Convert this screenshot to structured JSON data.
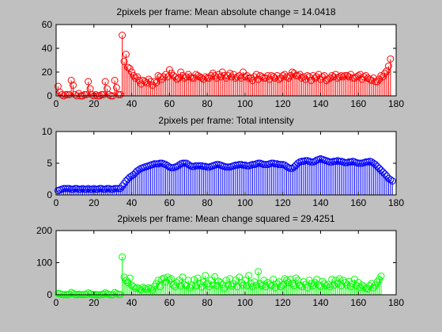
{
  "figure": {
    "background": "#c0c0c0",
    "axes_background": "#ffffff"
  },
  "chart_data": [
    {
      "type": "stem",
      "title": "2pixels per frame: Mean absolute change = 14.0418",
      "color": "#ff0000",
      "marker": "circle",
      "xlim": [
        0,
        180
      ],
      "ylim": [
        0,
        60
      ],
      "xticks": [
        0,
        20,
        40,
        60,
        80,
        100,
        120,
        140,
        160,
        180
      ],
      "yticks": [
        0,
        20,
        40,
        60
      ],
      "x_start": 1,
      "values": [
        8,
        3,
        1,
        0,
        1,
        1,
        1,
        13,
        9,
        1,
        0,
        2,
        0,
        0,
        1,
        1,
        12,
        6,
        1,
        0,
        1,
        0,
        0,
        1,
        1,
        12,
        6,
        1,
        0,
        0,
        13,
        7,
        1,
        1,
        51,
        29,
        35,
        24,
        23,
        20,
        17,
        15,
        16,
        13,
        10,
        13,
        12,
        11,
        14,
        12,
        9,
        12,
        11,
        17,
        16,
        14,
        16,
        18,
        16,
        22,
        19,
        17,
        16,
        14,
        15,
        20,
        17,
        15,
        16,
        18,
        16,
        15,
        15,
        18,
        17,
        16,
        15,
        14,
        16,
        15,
        15,
        17,
        19,
        17,
        15,
        18,
        16,
        20,
        17,
        15,
        17,
        19,
        16,
        18,
        15,
        16,
        17,
        15,
        20,
        16,
        17,
        15,
        15,
        13,
        16,
        18,
        14,
        17,
        16,
        15,
        15,
        17,
        14,
        17,
        16,
        15,
        17,
        14,
        15,
        17,
        18,
        16,
        15,
        17,
        20,
        19,
        17,
        17,
        18,
        15,
        16,
        14,
        17,
        16,
        13,
        17,
        15,
        16,
        18,
        14,
        16,
        17,
        13,
        14,
        15,
        17,
        16,
        18,
        15,
        16,
        17,
        16,
        17,
        17,
        16,
        18,
        15,
        15,
        16,
        17,
        18,
        14,
        16,
        17,
        15,
        14,
        13,
        15,
        12,
        12,
        14,
        17,
        16,
        19,
        21,
        25,
        31
      ]
    },
    {
      "type": "stem",
      "title": "2pixels per frame: Total intensity",
      "color": "#0000ff",
      "marker": "circle",
      "xlim": [
        0,
        180
      ],
      "ylim": [
        0,
        10
      ],
      "xticks": [
        0,
        20,
        40,
        60,
        80,
        100,
        120,
        140,
        160,
        180
      ],
      "yticks": [
        0,
        5,
        10
      ],
      "x_start": 1,
      "values": [
        0.7,
        0.8,
        0.9,
        1.0,
        1.0,
        1.0,
        1.0,
        0.9,
        0.9,
        1.0,
        1.0,
        0.9,
        0.9,
        1.0,
        0.9,
        0.9,
        1.0,
        0.9,
        0.9,
        1.0,
        0.9,
        0.9,
        1.0,
        1.0,
        0.9,
        0.9,
        1.0,
        1.0,
        0.9,
        0.9,
        1.0,
        1.0,
        1.0,
        1.0,
        1.4,
        1.8,
        2.2,
        2.5,
        2.8,
        3.0,
        3.2,
        3.5,
        3.8,
        4.0,
        4.2,
        4.3,
        4.4,
        4.5,
        4.6,
        4.7,
        4.8,
        4.9,
        4.9,
        4.9,
        5.0,
        5.0,
        4.9,
        4.8,
        4.6,
        4.4,
        4.3,
        4.3,
        4.4,
        4.5,
        4.7,
        4.9,
        5.0,
        5.0,
        5.0,
        4.8,
        4.6,
        4.5,
        4.5,
        4.6,
        4.6,
        4.6,
        4.6,
        4.5,
        4.5,
        4.4,
        4.4,
        4.5,
        4.6,
        4.7,
        4.8,
        4.8,
        4.7,
        4.6,
        4.5,
        4.4,
        4.4,
        4.4,
        4.5,
        4.6,
        4.7,
        4.7,
        4.8,
        4.8,
        4.7,
        4.7,
        4.6,
        4.6,
        4.7,
        4.8,
        4.8,
        4.9,
        5.0,
        5.0,
        4.9,
        4.8,
        4.8,
        4.8,
        4.9,
        5.0,
        5.0,
        4.9,
        4.9,
        4.8,
        4.8,
        4.8,
        4.7,
        4.5,
        4.3,
        4.2,
        4.2,
        4.4,
        4.7,
        5.0,
        5.2,
        5.3,
        5.3,
        5.4,
        5.4,
        5.3,
        5.2,
        5.2,
        5.3,
        5.5,
        5.6,
        5.7,
        5.6,
        5.5,
        5.4,
        5.3,
        5.2,
        5.2,
        5.3,
        5.3,
        5.4,
        5.3,
        5.3,
        5.2,
        5.1,
        5.1,
        5.2,
        5.2,
        5.3,
        5.2,
        5.1,
        5.0,
        5.0,
        5.0,
        5.1,
        5.2,
        5.2,
        5.3,
        5.2,
        5.0,
        4.8,
        4.5,
        4.2,
        3.9,
        3.6,
        3.3,
        3.0,
        2.6,
        2.4,
        2.2
      ]
    },
    {
      "type": "stem",
      "title": "2pixels per frame: Mean change squared = 29.4251",
      "color": "#00ff00",
      "marker": "circle",
      "xlim": [
        0,
        180
      ],
      "ylim": [
        0,
        200
      ],
      "xticks": [
        0,
        20,
        40,
        60,
        80,
        100,
        120,
        140,
        160,
        180
      ],
      "yticks": [
        0,
        100,
        200
      ],
      "x_start": 1,
      "values": [
        4,
        3,
        1,
        0,
        1,
        0,
        2,
        7,
        4,
        1,
        0,
        2,
        1,
        0,
        1,
        1,
        6,
        3,
        1,
        0,
        1,
        0,
        0,
        1,
        1,
        6,
        3,
        1,
        0,
        0,
        7,
        4,
        1,
        1,
        118,
        55,
        45,
        38,
        52,
        30,
        25,
        20,
        22,
        18,
        15,
        23,
        20,
        17,
        22,
        19,
        14,
        26,
        35,
        45,
        25,
        48,
        52,
        40,
        55,
        46,
        50,
        30,
        25,
        38,
        45,
        27,
        55,
        32,
        28,
        45,
        22,
        30,
        47,
        28,
        52,
        35,
        24,
        40,
        60,
        35,
        25,
        45,
        30,
        56,
        28,
        42,
        38,
        32,
        20,
        45,
        30,
        50,
        27,
        35,
        45,
        25,
        55,
        38,
        30,
        45,
        28,
        60,
        35,
        25,
        40,
        30,
        72,
        35,
        28,
        45,
        25,
        38,
        32,
        28,
        48,
        22,
        35,
        40,
        25,
        30,
        50,
        45,
        38,
        48,
        35,
        28,
        52,
        45,
        30,
        25,
        40,
        32,
        22,
        45,
        35,
        28,
        38,
        48,
        30,
        25,
        42,
        35,
        28,
        32,
        25,
        48,
        30,
        45,
        35,
        50,
        28,
        45,
        38,
        30,
        42,
        25,
        35,
        48,
        28,
        38,
        22,
        30,
        25,
        20,
        18,
        28,
        35,
        22,
        30,
        40,
        48,
        58
      ]
    }
  ]
}
